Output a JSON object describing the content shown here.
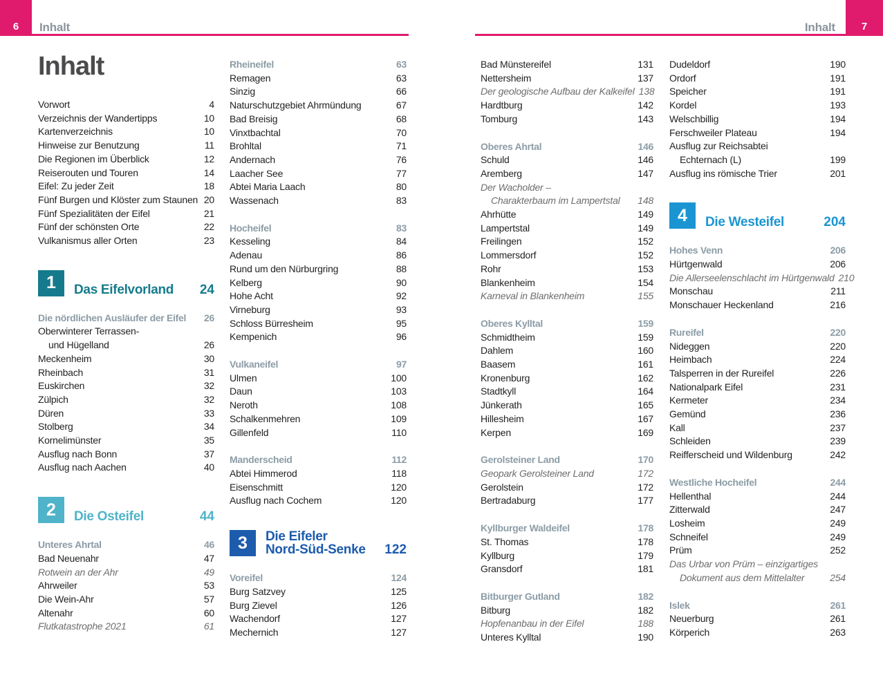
{
  "colors": {
    "pink": "#e01a6c",
    "header-gray": "#8b949c",
    "title-dark": "#4b4b4d",
    "body": "#221f20",
    "italic": "#6c6d6f",
    "subsection": "#8c9ca6",
    "chapter1": "#157b8c",
    "chapter2": "#4fb3c9",
    "chapter3": "#1d5bad",
    "chapter4": "#1b95d2"
  },
  "page_left": {
    "folio": "6",
    "header": "Inhalt",
    "title": "Inhalt"
  },
  "page_right": {
    "folio": "7",
    "header": "Inhalt"
  },
  "columns": [
    [
      {
        "type": "item",
        "text": "Vorwort",
        "page": "4"
      },
      {
        "type": "item",
        "text": "Verzeichnis der Wandertipps",
        "page": "10"
      },
      {
        "type": "item",
        "text": "Kartenverzeichnis",
        "page": "10"
      },
      {
        "type": "item",
        "text": "Hinweise zur Benutzung",
        "page": "11"
      },
      {
        "type": "item",
        "text": "Die Regionen im Überblick",
        "page": "12"
      },
      {
        "type": "item",
        "text": "Reiserouten und Touren",
        "page": "14"
      },
      {
        "type": "item",
        "text": "Eifel: Zu jeder Zeit",
        "page": "18"
      },
      {
        "type": "item",
        "text": "Fünf Burgen und Klöster zum Staunen",
        "page": "20"
      },
      {
        "type": "item",
        "text": "Fünf Spezialitäten der Eifel",
        "page": "21"
      },
      {
        "type": "item",
        "text": "Fünf der schönsten Orte",
        "page": "22"
      },
      {
        "type": "item",
        "text": "Vulkanismus aller Orten",
        "page": "23"
      },
      {
        "type": "chapter",
        "num": "1",
        "title_lines": [
          "Das Eifelvorland"
        ],
        "page": "24",
        "color_key": "chapter1"
      },
      {
        "type": "section",
        "text": "Die nördlichen Ausläufer der Eifel",
        "page": "26"
      },
      {
        "type": "item",
        "text": "Oberwinterer Terrassen-",
        "page": ""
      },
      {
        "type": "item",
        "text": "und Hügelland",
        "page": "26",
        "indent": true
      },
      {
        "type": "item",
        "text": "Meckenheim",
        "page": "30"
      },
      {
        "type": "item",
        "text": "Rheinbach",
        "page": "31"
      },
      {
        "type": "item",
        "text": "Euskirchen",
        "page": "32"
      },
      {
        "type": "item",
        "text": "Zülpich",
        "page": "32"
      },
      {
        "type": "item",
        "text": "Düren",
        "page": "33"
      },
      {
        "type": "item",
        "text": "Stolberg",
        "page": "34"
      },
      {
        "type": "item",
        "text": "Kornelimünster",
        "page": "35"
      },
      {
        "type": "item",
        "text": "Ausflug nach Bonn",
        "page": "37"
      },
      {
        "type": "item",
        "text": "Ausflug nach Aachen",
        "page": "40"
      },
      {
        "type": "chapter",
        "num": "2",
        "title_lines": [
          "Die Osteifel"
        ],
        "page": "44",
        "color_key": "chapter2"
      },
      {
        "type": "section",
        "text": "Unteres Ahrtal",
        "page": "46"
      },
      {
        "type": "item",
        "text": "Bad Neuenahr",
        "page": "47"
      },
      {
        "type": "item",
        "text": "Rotwein an der Ahr",
        "page": "49",
        "italic": true
      },
      {
        "type": "item",
        "text": "Ahrweiler",
        "page": "53"
      },
      {
        "type": "item",
        "text": "Die Wein-Ahr",
        "page": "57"
      },
      {
        "type": "item",
        "text": "Altenahr",
        "page": "60"
      },
      {
        "type": "item",
        "text": "Flutkatastrophe 2021",
        "page": "61",
        "italic": true
      }
    ],
    [
      {
        "type": "section",
        "text": "Rheineifel",
        "page": "63"
      },
      {
        "type": "item",
        "text": "Remagen",
        "page": "63"
      },
      {
        "type": "item",
        "text": "Sinzig",
        "page": "66"
      },
      {
        "type": "item",
        "text": "Naturschutzgebiet Ahrmündung",
        "page": "67"
      },
      {
        "type": "item",
        "text": "Bad Breisig",
        "page": "68"
      },
      {
        "type": "item",
        "text": "Vinxtbachtal",
        "page": "70"
      },
      {
        "type": "item",
        "text": "Brohltal",
        "page": "71"
      },
      {
        "type": "item",
        "text": "Andernach",
        "page": "76"
      },
      {
        "type": "item",
        "text": "Laacher See",
        "page": "77"
      },
      {
        "type": "item",
        "text": "Abtei Maria Laach",
        "page": "80"
      },
      {
        "type": "item",
        "text": "Wassenach",
        "page": "83"
      },
      {
        "type": "section",
        "text": "Hocheifel",
        "page": "83"
      },
      {
        "type": "item",
        "text": "Kesseling",
        "page": "84"
      },
      {
        "type": "item",
        "text": "Adenau",
        "page": "86"
      },
      {
        "type": "item",
        "text": "Rund um den Nürburgring",
        "page": "88"
      },
      {
        "type": "item",
        "text": "Kelberg",
        "page": "90"
      },
      {
        "type": "item",
        "text": "Hohe Acht",
        "page": "92"
      },
      {
        "type": "item",
        "text": "Virneburg",
        "page": "93"
      },
      {
        "type": "item",
        "text": "Schloss Bürresheim",
        "page": "95"
      },
      {
        "type": "item",
        "text": "Kempenich",
        "page": "96"
      },
      {
        "type": "section",
        "text": "Vulkaneifel",
        "page": "97"
      },
      {
        "type": "item",
        "text": "Ulmen",
        "page": "100"
      },
      {
        "type": "item",
        "text": "Daun",
        "page": "103"
      },
      {
        "type": "item",
        "text": "Neroth",
        "page": "108"
      },
      {
        "type": "item",
        "text": "Schalkenmehren",
        "page": "109"
      },
      {
        "type": "item",
        "text": "Gillenfeld",
        "page": "110"
      },
      {
        "type": "section",
        "text": "Manderscheid",
        "page": "112"
      },
      {
        "type": "item",
        "text": "Abtei Himmerod",
        "page": "118"
      },
      {
        "type": "item",
        "text": "Eisenschmitt",
        "page": "120"
      },
      {
        "type": "item",
        "text": "Ausflug nach Cochem",
        "page": "120"
      },
      {
        "type": "chapter",
        "num": "3",
        "title_lines": [
          "Die Eifeler",
          "Nord-Süd-Senke"
        ],
        "page": "122",
        "color_key": "chapter3"
      },
      {
        "type": "section",
        "text": "Voreifel",
        "page": "124"
      },
      {
        "type": "item",
        "text": "Burg Satzvey",
        "page": "125"
      },
      {
        "type": "item",
        "text": "Burg Zievel",
        "page": "126"
      },
      {
        "type": "item",
        "text": "Wachendorf",
        "page": "127"
      },
      {
        "type": "item",
        "text": "Mechernich",
        "page": "127"
      }
    ],
    [
      {
        "type": "item",
        "text": "Bad Münstereifel",
        "page": "131"
      },
      {
        "type": "item",
        "text": "Nettersheim",
        "page": "137"
      },
      {
        "type": "item",
        "text": "Der geologische Aufbau der Kalkeifel",
        "page": "138",
        "italic": true
      },
      {
        "type": "item",
        "text": "Hardtburg",
        "page": "142"
      },
      {
        "type": "item",
        "text": "Tomburg",
        "page": "143"
      },
      {
        "type": "section",
        "text": "Oberes Ahrtal",
        "page": "146"
      },
      {
        "type": "item",
        "text": "Schuld",
        "page": "146"
      },
      {
        "type": "item",
        "text": "Aremberg",
        "page": "147"
      },
      {
        "type": "item",
        "text": "Der Wacholder –",
        "page": "",
        "italic": true
      },
      {
        "type": "item",
        "text": "Charakterbaum im Lampertstal",
        "page": "148",
        "italic": true,
        "indent": true
      },
      {
        "type": "item",
        "text": "Ahrhütte",
        "page": "149"
      },
      {
        "type": "item",
        "text": "Lampertstal",
        "page": "149"
      },
      {
        "type": "item",
        "text": "Freilingen",
        "page": "152"
      },
      {
        "type": "item",
        "text": "Lommersdorf",
        "page": "152"
      },
      {
        "type": "item",
        "text": "Rohr",
        "page": "153"
      },
      {
        "type": "item",
        "text": "Blankenheim",
        "page": "154"
      },
      {
        "type": "item",
        "text": "Karneval in Blankenheim",
        "page": "155",
        "italic": true
      },
      {
        "type": "section",
        "text": "Oberes Kylltal",
        "page": "159"
      },
      {
        "type": "item",
        "text": "Schmidtheim",
        "page": "159"
      },
      {
        "type": "item",
        "text": "Dahlem",
        "page": "160"
      },
      {
        "type": "item",
        "text": "Baasem",
        "page": "161"
      },
      {
        "type": "item",
        "text": "Kronenburg",
        "page": "162"
      },
      {
        "type": "item",
        "text": "Stadtkyll",
        "page": "164"
      },
      {
        "type": "item",
        "text": "Jünkerath",
        "page": "165"
      },
      {
        "type": "item",
        "text": "Hillesheim",
        "page": "167"
      },
      {
        "type": "item",
        "text": "Kerpen",
        "page": "169"
      },
      {
        "type": "section",
        "text": "Gerolsteiner Land",
        "page": "170"
      },
      {
        "type": "item",
        "text": "Geopark Gerolsteiner Land",
        "page": "172",
        "italic": true
      },
      {
        "type": "item",
        "text": "Gerolstein",
        "page": "172"
      },
      {
        "type": "item",
        "text": "Bertradaburg",
        "page": "177"
      },
      {
        "type": "section",
        "text": "Kyllburger Waldeifel",
        "page": "178"
      },
      {
        "type": "item",
        "text": "St. Thomas",
        "page": "178"
      },
      {
        "type": "item",
        "text": "Kyllburg",
        "page": "179"
      },
      {
        "type": "item",
        "text": "Gransdorf",
        "page": "181"
      },
      {
        "type": "section",
        "text": "Bitburger Gutland",
        "page": "182"
      },
      {
        "type": "item",
        "text": "Bitburg",
        "page": "182"
      },
      {
        "type": "item",
        "text": "Hopfenanbau in der Eifel",
        "page": "188",
        "italic": true
      },
      {
        "type": "item",
        "text": "Unteres Kylltal",
        "page": "190"
      }
    ],
    [
      {
        "type": "item",
        "text": "Dudeldorf",
        "page": "190"
      },
      {
        "type": "item",
        "text": "Ordorf",
        "page": "191"
      },
      {
        "type": "item",
        "text": "Speicher",
        "page": "191"
      },
      {
        "type": "item",
        "text": "Kordel",
        "page": "193"
      },
      {
        "type": "item",
        "text": "Welschbillig",
        "page": "194"
      },
      {
        "type": "item",
        "text": "Ferschweiler Plateau",
        "page": "194"
      },
      {
        "type": "item",
        "text": "Ausflug zur Reichsabtei",
        "page": ""
      },
      {
        "type": "item",
        "text": "Echternach (L)",
        "page": "199",
        "indent": true
      },
      {
        "type": "item",
        "text": "Ausflug ins römische Trier",
        "page": "201"
      },
      {
        "type": "chapter",
        "num": "4",
        "title_lines": [
          "Die Westeifel"
        ],
        "page": "204",
        "color_key": "chapter4"
      },
      {
        "type": "section",
        "text": "Hohes Venn",
        "page": "206"
      },
      {
        "type": "item",
        "text": "Hürtgenwald",
        "page": "206"
      },
      {
        "type": "item",
        "text": "Die Allerseelenschlacht im Hürtgenwald",
        "page": "210",
        "italic": true
      },
      {
        "type": "item",
        "text": "Monschau",
        "page": "211"
      },
      {
        "type": "item",
        "text": "Monschauer Heckenland",
        "page": "216"
      },
      {
        "type": "section",
        "text": "Rureifel",
        "page": "220"
      },
      {
        "type": "item",
        "text": "Nideggen",
        "page": "220"
      },
      {
        "type": "item",
        "text": "Heimbach",
        "page": "224"
      },
      {
        "type": "item",
        "text": "Talsperren in der Rureifel",
        "page": "226"
      },
      {
        "type": "item",
        "text": "Nationalpark Eifel",
        "page": "231"
      },
      {
        "type": "item",
        "text": "Kermeter",
        "page": "234"
      },
      {
        "type": "item",
        "text": "Gemünd",
        "page": "236"
      },
      {
        "type": "item",
        "text": "Kall",
        "page": "237"
      },
      {
        "type": "item",
        "text": "Schleiden",
        "page": "239"
      },
      {
        "type": "item",
        "text": "Reifferscheid und Wildenburg",
        "page": "242"
      },
      {
        "type": "section",
        "text": "Westliche Hocheifel",
        "page": "244"
      },
      {
        "type": "item",
        "text": "Hellenthal",
        "page": "244"
      },
      {
        "type": "item",
        "text": "Zitterwald",
        "page": "247"
      },
      {
        "type": "item",
        "text": "Losheim",
        "page": "249"
      },
      {
        "type": "item",
        "text": "Schneifel",
        "page": "249"
      },
      {
        "type": "item",
        "text": "Prüm",
        "page": "252"
      },
      {
        "type": "item",
        "text": "Das Urbar von Prüm – einzigartiges",
        "page": "",
        "italic": true
      },
      {
        "type": "item",
        "text": "Dokument aus dem Mittelalter",
        "page": "254",
        "italic": true,
        "indent": true
      },
      {
        "type": "section",
        "text": "Islek",
        "page": "261"
      },
      {
        "type": "item",
        "text": "Neuerburg",
        "page": "261"
      },
      {
        "type": "item",
        "text": "Körperich",
        "page": "263"
      }
    ]
  ]
}
